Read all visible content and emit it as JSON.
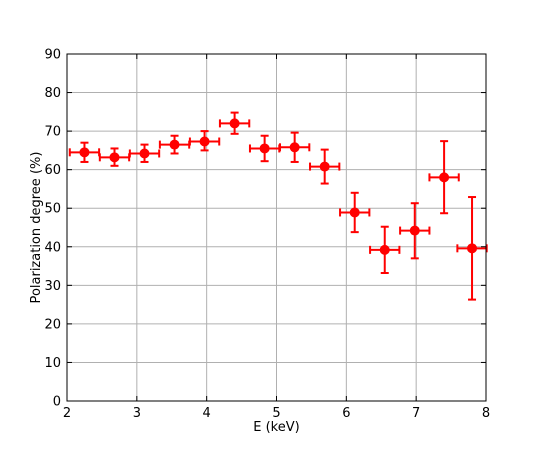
{
  "chart_data": {
    "type": "scatter",
    "xlabel": "E (keV)",
    "ylabel": "Polarization degree (%)",
    "xlim": [
      2,
      8
    ],
    "ylim": [
      0,
      90
    ],
    "xticks": [
      "2",
      "3",
      "4",
      "5",
      "6",
      "7",
      "8"
    ],
    "yticks": [
      "0",
      "10",
      "20",
      "30",
      "40",
      "50",
      "60",
      "70",
      "80",
      "90"
    ],
    "grid": true,
    "color": "#ff0000",
    "series": [
      {
        "points": [
          {
            "x": 2.25,
            "xerr": 0.21,
            "y": 64.5,
            "y_low": 62.0,
            "y_high": 67.0
          },
          {
            "x": 2.68,
            "xerr": 0.21,
            "y": 63.2,
            "y_low": 61.0,
            "y_high": 65.5
          },
          {
            "x": 3.11,
            "xerr": 0.21,
            "y": 64.2,
            "y_low": 62.0,
            "y_high": 66.5
          },
          {
            "x": 3.54,
            "xerr": 0.21,
            "y": 66.5,
            "y_low": 64.2,
            "y_high": 68.8
          },
          {
            "x": 3.97,
            "xerr": 0.21,
            "y": 67.3,
            "y_low": 65.0,
            "y_high": 70.0
          },
          {
            "x": 4.4,
            "xerr": 0.21,
            "y": 72.0,
            "y_low": 69.3,
            "y_high": 74.8
          },
          {
            "x": 4.83,
            "xerr": 0.21,
            "y": 65.5,
            "y_low": 62.2,
            "y_high": 68.8
          },
          {
            "x": 5.26,
            "xerr": 0.21,
            "y": 65.8,
            "y_low": 62.0,
            "y_high": 69.6
          },
          {
            "x": 5.69,
            "xerr": 0.21,
            "y": 60.8,
            "y_low": 56.4,
            "y_high": 65.2
          },
          {
            "x": 6.12,
            "xerr": 0.21,
            "y": 48.9,
            "y_low": 43.8,
            "y_high": 54.0
          },
          {
            "x": 6.55,
            "xerr": 0.21,
            "y": 39.2,
            "y_low": 33.2,
            "y_high": 45.2
          },
          {
            "x": 6.98,
            "xerr": 0.21,
            "y": 44.2,
            "y_low": 37.0,
            "y_high": 51.3
          },
          {
            "x": 7.4,
            "xerr": 0.21,
            "y": 58.0,
            "y_low": 48.7,
            "y_high": 67.4
          },
          {
            "x": 7.8,
            "xerr": 0.21,
            "y": 39.6,
            "y_low": 26.3,
            "y_high": 52.9
          }
        ]
      }
    ]
  }
}
